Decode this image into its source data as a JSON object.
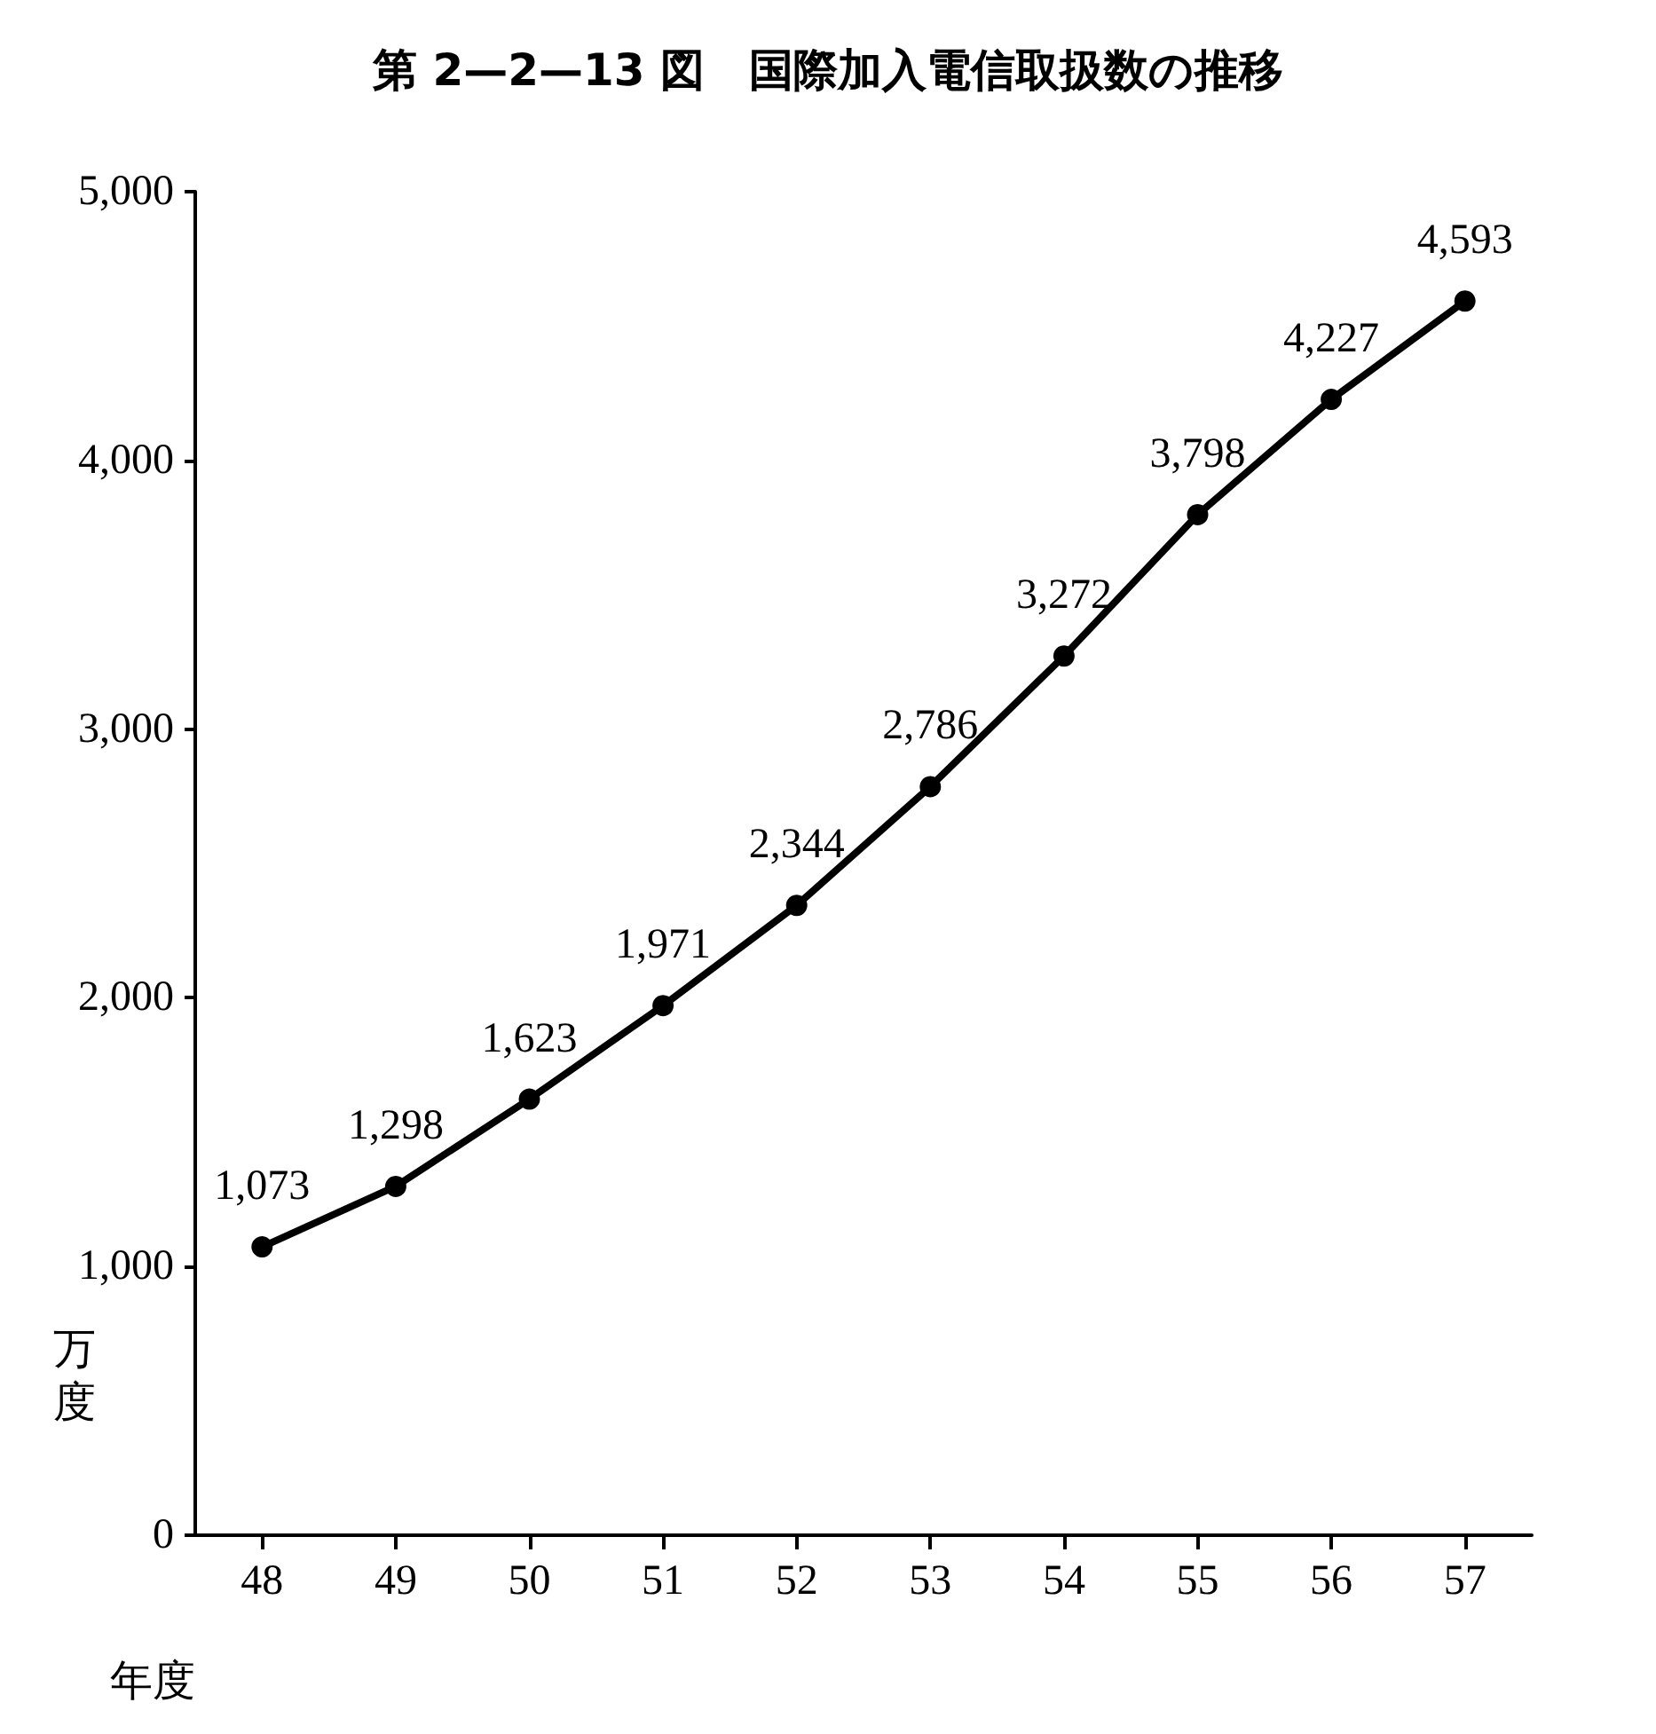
{
  "chart_data": {
    "type": "line",
    "title": "第 2—2—13 図　国際加入電信取扱数の推移",
    "xlabel": "年度",
    "ylabel": "万度",
    "categories": [
      "48",
      "49",
      "50",
      "51",
      "52",
      "53",
      "54",
      "55",
      "56",
      "57"
    ],
    "series": [
      {
        "color": "#000000",
        "values": [
          1073,
          1298,
          1623,
          1971,
          2344,
          2786,
          3272,
          3798,
          4227,
          4593
        ],
        "value_labels": [
          "1,073",
          "1,298",
          "1,623",
          "1,971",
          "2,344",
          "2,786",
          "3,272",
          "3,798",
          "4,227",
          "4,593"
        ]
      }
    ],
    "ylim": [
      0,
      5000
    ],
    "yticks": [
      0,
      {
        "value": 1000,
        "label": "1,000"
      },
      {
        "value": 2000,
        "label": "2,000"
      },
      {
        "value": 3000,
        "label": "3,000"
      },
      {
        "value": 4000,
        "label": "4,000"
      },
      {
        "value": 5000,
        "label": "5,000"
      }
    ],
    "grid": false,
    "marker": "circle",
    "line_style": "solid"
  }
}
